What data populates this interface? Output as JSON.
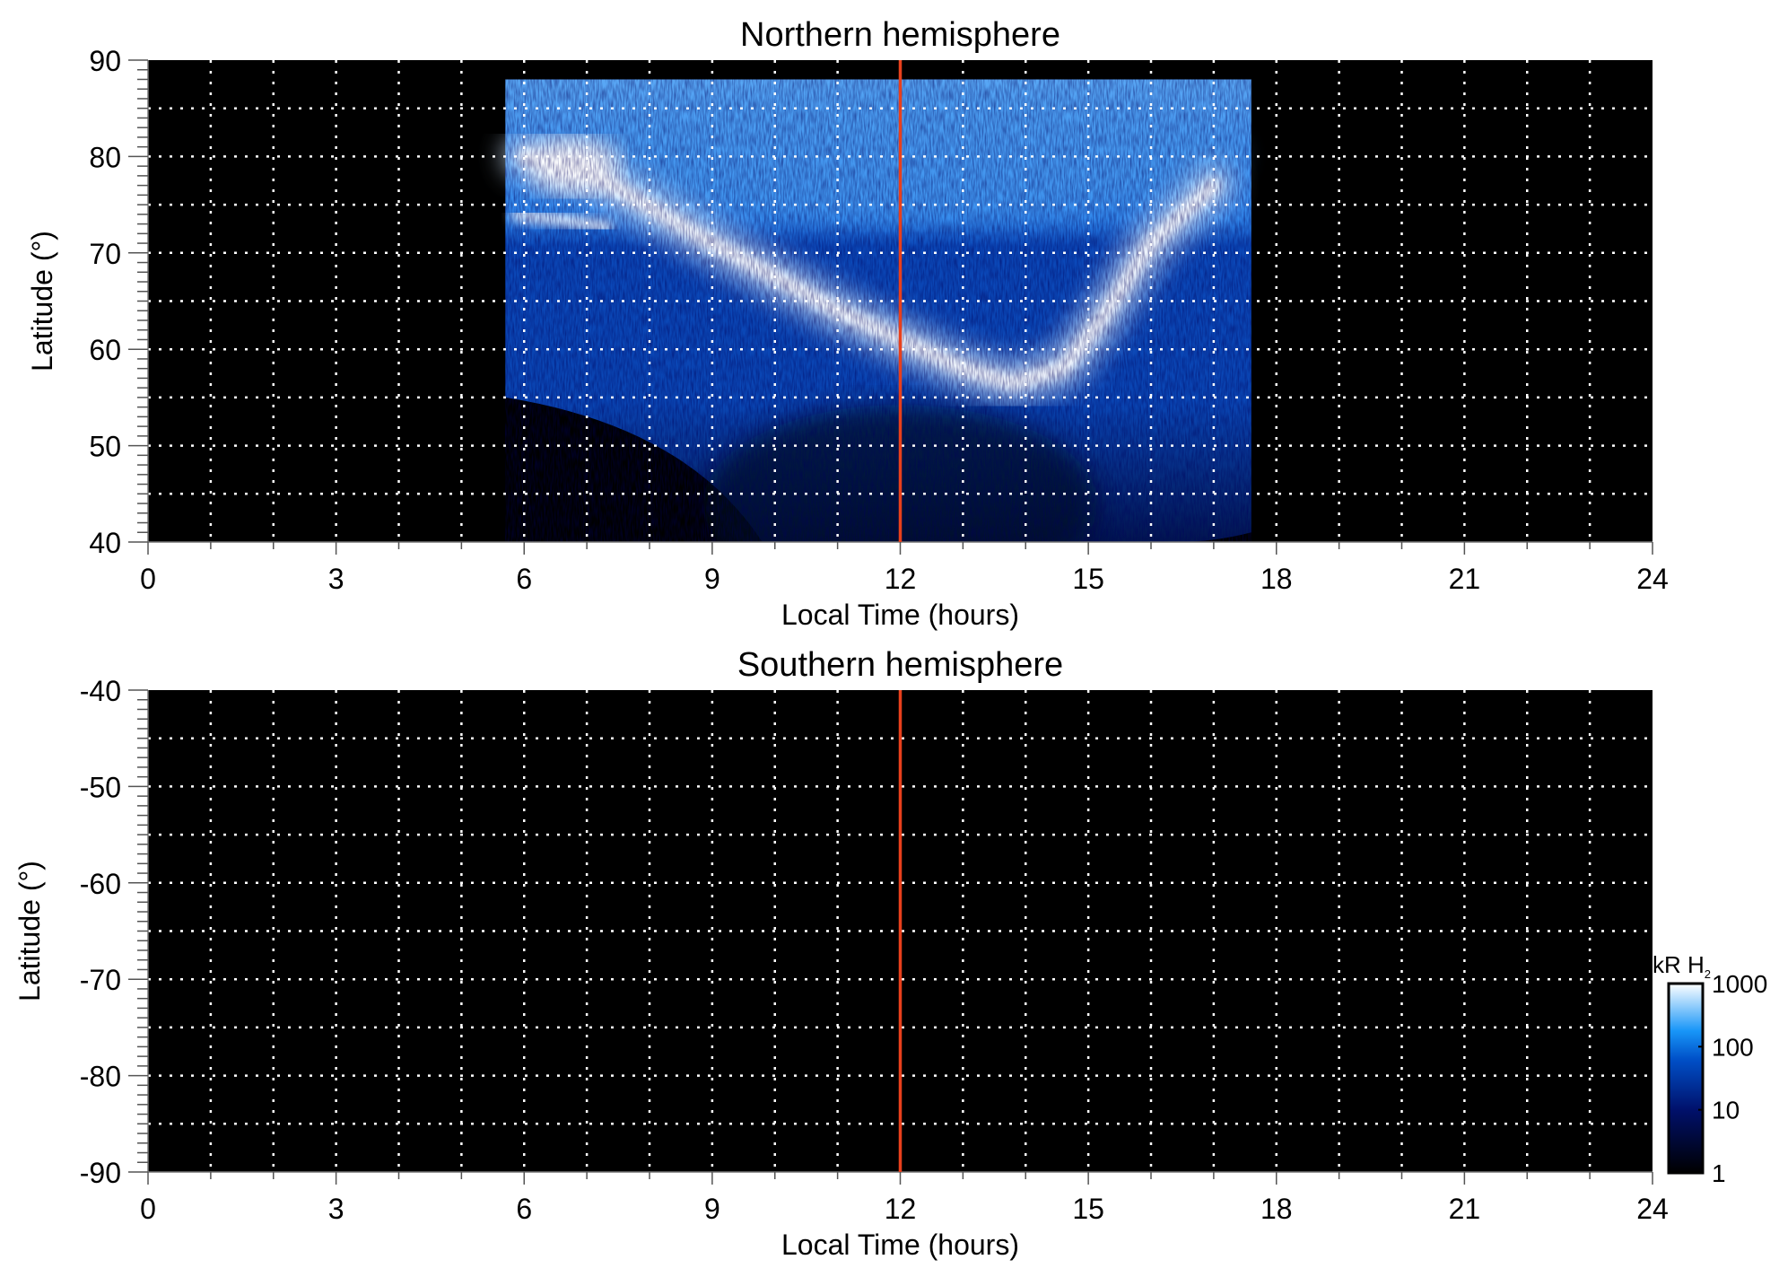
{
  "chart_data": [
    {
      "type": "heatmap",
      "title": "Northern hemisphere",
      "xlabel": "Local Time (hours)",
      "ylabel": "Latitude (°)",
      "xlim": [
        0,
        24
      ],
      "ylim": [
        40,
        90
      ],
      "xticks": [
        "0",
        "3",
        "6",
        "9",
        "12",
        "15",
        "18",
        "21",
        "24"
      ],
      "yticks": [
        "90",
        "80",
        "70",
        "60",
        "50",
        "40"
      ],
      "grid": true,
      "marker_line_x": 12,
      "marker_color": "#e8401c",
      "coverage": {
        "local_time_range": [
          5.7,
          17.6
        ],
        "latitude_range": [
          40,
          88
        ]
      },
      "features": {
        "main_emission_oval": [
          [
            6,
            80
          ],
          [
            7,
            78.5
          ],
          [
            9,
            71
          ],
          [
            11,
            64
          ],
          [
            12,
            61
          ],
          [
            13,
            58
          ],
          [
            13.8,
            56.5
          ],
          [
            14.6,
            58
          ],
          [
            15.2,
            63
          ],
          [
            16,
            71
          ],
          [
            17,
            77
          ]
        ]
      }
    },
    {
      "type": "heatmap",
      "title": "Southern hemisphere",
      "xlabel": "Local Time (hours)",
      "ylabel": "Latitude (°)",
      "xlim": [
        0,
        24
      ],
      "ylim": [
        -90,
        -40
      ],
      "xticks": [
        "0",
        "3",
        "6",
        "9",
        "12",
        "15",
        "18",
        "21",
        "24"
      ],
      "yticks": [
        "-40",
        "-50",
        "-60",
        "-70",
        "-80",
        "-90"
      ],
      "grid": true,
      "marker_line_x": 12,
      "marker_color": "#e8401c",
      "coverage": null
    }
  ],
  "colorbar": {
    "label": "kR H",
    "label_subscript": "2",
    "scale": "log",
    "range": [
      1,
      1000
    ],
    "ticks": [
      "1000",
      "100",
      "10",
      "1"
    ],
    "colors": [
      "#000000",
      "#00106a",
      "#0050c8",
      "#1896f8",
      "#ffffff"
    ]
  }
}
